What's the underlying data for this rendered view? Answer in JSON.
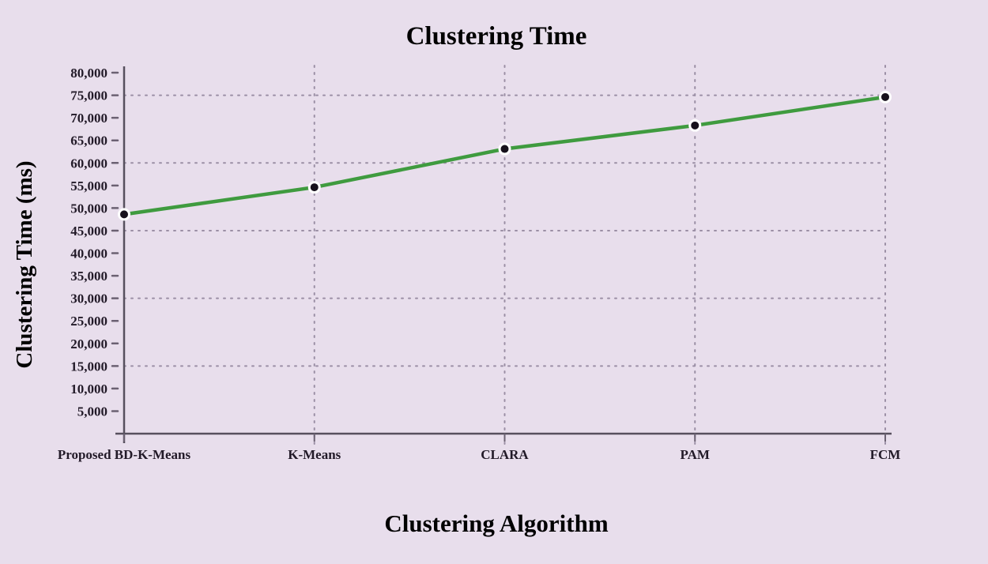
{
  "page": {
    "background": "#e8deec"
  },
  "chart_data": {
    "type": "line",
    "title": "Clustering Time",
    "xlabel": "Clustering Algorithm",
    "ylabel": "Clustering Time (ms)",
    "categories": [
      "Proposed BD-K-Means",
      "K-Means",
      "CLARA",
      "PAM",
      "FCM"
    ],
    "values": [
      48600,
      54600,
      63100,
      68300,
      74600
    ],
    "ylim": [
      0,
      80000
    ],
    "ytick_step": 5000,
    "ygrid_lines": [
      15000,
      30000,
      45000,
      60000,
      75000
    ],
    "grid_style": "dotted",
    "legend": "none",
    "colors": {
      "background": "#e8deec",
      "line": "#3f9b3f",
      "marker_fill": "#17111c",
      "marker_ring": "#ffffff",
      "axis": "#57505e",
      "grid_dots": "#9b8fa5",
      "tick": "#6b6172",
      "text": "#221a28"
    }
  }
}
